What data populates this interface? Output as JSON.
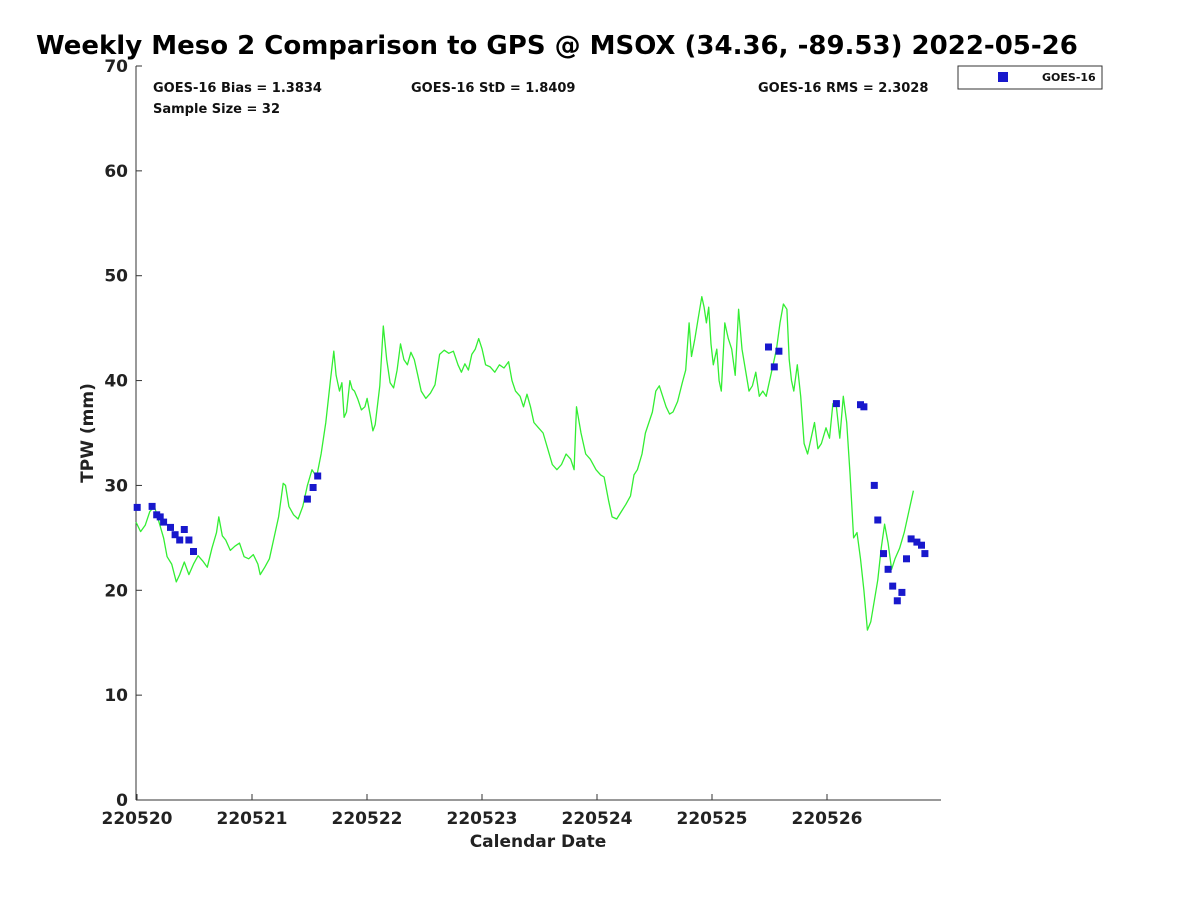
{
  "chart_data": {
    "type": "scatter",
    "title": "Weekly Meso 2 Comparison to GPS @ MSOX (34.36, -89.53) 2022-05-26",
    "xlabel": "Calendar Date",
    "ylabel": "TPW (mm)",
    "xlim": [
      0,
      7
    ],
    "ylim": [
      0,
      70
    ],
    "grid": false,
    "x_ticks": [
      0,
      1,
      2,
      3,
      4,
      5,
      6
    ],
    "x_tick_labels": [
      "220520",
      "220521",
      "220522",
      "220523",
      "220524",
      "220525",
      "220526"
    ],
    "y_ticks": [
      0,
      10,
      20,
      30,
      40,
      50,
      60,
      70
    ],
    "y_tick_labels": [
      "0",
      "10",
      "20",
      "30",
      "40",
      "50",
      "60",
      "70"
    ],
    "stats": {
      "bias": "GOES-16 Bias = 1.3834",
      "std": "GOES-16 StD = 1.8409",
      "rms": "GOES-16 RMS = 2.3028",
      "sample_size": "Sample Size = 32"
    },
    "legend": {
      "position": "top-right",
      "entries": [
        "GOES-16"
      ]
    },
    "series": [
      {
        "name": "GPS",
        "kind": "line",
        "color": "#33ee33",
        "points": [
          [
            0.0,
            26.5
          ],
          [
            0.04,
            25.6
          ],
          [
            0.08,
            26.2
          ],
          [
            0.12,
            27.5
          ],
          [
            0.16,
            28.0
          ],
          [
            0.2,
            26.5
          ],
          [
            0.24,
            25.0
          ],
          [
            0.27,
            23.2
          ],
          [
            0.31,
            22.5
          ],
          [
            0.35,
            20.8
          ],
          [
            0.38,
            21.5
          ],
          [
            0.42,
            22.7
          ],
          [
            0.46,
            21.5
          ],
          [
            0.5,
            22.5
          ],
          [
            0.54,
            23.3
          ],
          [
            0.58,
            22.8
          ],
          [
            0.62,
            22.2
          ],
          [
            0.66,
            24.0
          ],
          [
            0.7,
            25.5
          ],
          [
            0.72,
            27.0
          ],
          [
            0.75,
            25.2
          ],
          [
            0.78,
            24.8
          ],
          [
            0.82,
            23.8
          ],
          [
            0.86,
            24.2
          ],
          [
            0.9,
            24.5
          ],
          [
            0.94,
            23.2
          ],
          [
            0.98,
            23.0
          ],
          [
            1.02,
            23.4
          ],
          [
            1.06,
            22.5
          ],
          [
            1.08,
            21.5
          ],
          [
            1.12,
            22.2
          ],
          [
            1.16,
            23.0
          ],
          [
            1.2,
            25.0
          ],
          [
            1.24,
            27.0
          ],
          [
            1.28,
            30.2
          ],
          [
            1.3,
            30.0
          ],
          [
            1.33,
            28.0
          ],
          [
            1.37,
            27.2
          ],
          [
            1.41,
            26.8
          ],
          [
            1.45,
            28.0
          ],
          [
            1.49,
            30.0
          ],
          [
            1.53,
            31.5
          ],
          [
            1.57,
            30.8
          ],
          [
            1.61,
            33.0
          ],
          [
            1.65,
            36.0
          ],
          [
            1.69,
            40.0
          ],
          [
            1.72,
            42.8
          ],
          [
            1.74,
            40.5
          ],
          [
            1.77,
            39.0
          ],
          [
            1.79,
            39.8
          ],
          [
            1.81,
            36.5
          ],
          [
            1.83,
            37.0
          ],
          [
            1.86,
            40.0
          ],
          [
            1.88,
            39.2
          ],
          [
            1.9,
            39.0
          ],
          [
            1.93,
            38.2
          ],
          [
            1.96,
            37.2
          ],
          [
            1.99,
            37.5
          ],
          [
            2.01,
            38.3
          ],
          [
            2.04,
            36.5
          ],
          [
            2.06,
            35.2
          ],
          [
            2.08,
            35.8
          ],
          [
            2.12,
            39.5
          ],
          [
            2.15,
            45.2
          ],
          [
            2.18,
            42.0
          ],
          [
            2.21,
            39.8
          ],
          [
            2.24,
            39.3
          ],
          [
            2.27,
            41.0
          ],
          [
            2.3,
            43.5
          ],
          [
            2.33,
            42.0
          ],
          [
            2.36,
            41.5
          ],
          [
            2.39,
            42.7
          ],
          [
            2.42,
            42.0
          ],
          [
            2.45,
            40.5
          ],
          [
            2.48,
            39.0
          ],
          [
            2.52,
            38.3
          ],
          [
            2.56,
            38.8
          ],
          [
            2.6,
            39.6
          ],
          [
            2.64,
            42.5
          ],
          [
            2.68,
            42.9
          ],
          [
            2.72,
            42.6
          ],
          [
            2.76,
            42.8
          ],
          [
            2.8,
            41.5
          ],
          [
            2.83,
            40.8
          ],
          [
            2.86,
            41.6
          ],
          [
            2.89,
            41.0
          ],
          [
            2.92,
            42.5
          ],
          [
            2.95,
            43.0
          ],
          [
            2.98,
            44.0
          ],
          [
            3.01,
            43.0
          ],
          [
            3.04,
            41.5
          ],
          [
            3.08,
            41.3
          ],
          [
            3.12,
            40.8
          ],
          [
            3.16,
            41.5
          ],
          [
            3.2,
            41.2
          ],
          [
            3.24,
            41.8
          ],
          [
            3.27,
            40.0
          ],
          [
            3.3,
            39.0
          ],
          [
            3.34,
            38.5
          ],
          [
            3.37,
            37.5
          ],
          [
            3.4,
            38.7
          ],
          [
            3.43,
            37.5
          ],
          [
            3.46,
            36.0
          ],
          [
            3.5,
            35.5
          ],
          [
            3.54,
            35.0
          ],
          [
            3.58,
            33.5
          ],
          [
            3.62,
            32.0
          ],
          [
            3.66,
            31.5
          ],
          [
            3.7,
            32.0
          ],
          [
            3.74,
            33.0
          ],
          [
            3.78,
            32.5
          ],
          [
            3.81,
            31.5
          ],
          [
            3.83,
            37.5
          ],
          [
            3.87,
            35.0
          ],
          [
            3.91,
            33.0
          ],
          [
            3.95,
            32.5
          ],
          [
            4.0,
            31.5
          ],
          [
            4.04,
            31.0
          ],
          [
            4.07,
            30.8
          ],
          [
            4.11,
            28.5
          ],
          [
            4.14,
            27.0
          ],
          [
            4.18,
            26.8
          ],
          [
            4.22,
            27.5
          ],
          [
            4.26,
            28.2
          ],
          [
            4.3,
            29.0
          ],
          [
            4.33,
            31.0
          ],
          [
            4.36,
            31.5
          ],
          [
            4.4,
            33.0
          ],
          [
            4.43,
            35.0
          ],
          [
            4.46,
            36.0
          ],
          [
            4.49,
            37.0
          ],
          [
            4.52,
            39.0
          ],
          [
            4.55,
            39.5
          ],
          [
            4.58,
            38.5
          ],
          [
            4.61,
            37.5
          ],
          [
            4.64,
            36.8
          ],
          [
            4.67,
            37.0
          ],
          [
            4.71,
            38.0
          ],
          [
            4.75,
            39.8
          ],
          [
            4.78,
            41.0
          ],
          [
            4.81,
            45.5
          ],
          [
            4.83,
            42.3
          ],
          [
            4.86,
            44.0
          ],
          [
            4.89,
            46.0
          ],
          [
            4.92,
            48.0
          ],
          [
            4.94,
            47.0
          ],
          [
            4.96,
            45.5
          ],
          [
            4.98,
            47.0
          ],
          [
            5.0,
            43.5
          ],
          [
            5.02,
            41.5
          ],
          [
            5.05,
            43.0
          ],
          [
            5.07,
            40.0
          ],
          [
            5.09,
            39.0
          ],
          [
            5.12,
            45.5
          ],
          [
            5.15,
            44.0
          ],
          [
            5.18,
            43.0
          ],
          [
            5.21,
            40.5
          ],
          [
            5.24,
            46.8
          ],
          [
            5.27,
            43.0
          ],
          [
            5.3,
            41.0
          ],
          [
            5.33,
            39.0
          ],
          [
            5.36,
            39.5
          ],
          [
            5.39,
            40.8
          ],
          [
            5.42,
            38.5
          ],
          [
            5.45,
            39.0
          ],
          [
            5.48,
            38.5
          ],
          [
            5.51,
            40.0
          ],
          [
            5.54,
            41.5
          ],
          [
            5.57,
            43.0
          ],
          [
            5.6,
            45.5
          ],
          [
            5.63,
            47.3
          ],
          [
            5.66,
            46.8
          ],
          [
            5.68,
            42.0
          ],
          [
            5.7,
            40.0
          ],
          [
            5.72,
            39.0
          ],
          [
            5.75,
            41.5
          ],
          [
            5.78,
            38.5
          ],
          [
            5.81,
            34.0
          ],
          [
            5.84,
            33.0
          ],
          [
            5.87,
            34.5
          ],
          [
            5.9,
            36.0
          ],
          [
            5.93,
            33.5
          ],
          [
            5.96,
            34.0
          ],
          [
            6.0,
            35.5
          ],
          [
            6.03,
            34.5
          ],
          [
            6.06,
            37.8
          ],
          [
            6.09,
            37.5
          ],
          [
            6.12,
            34.5
          ],
          [
            6.15,
            38.5
          ],
          [
            6.18,
            36.0
          ],
          [
            6.21,
            31.0
          ],
          [
            6.24,
            25.0
          ],
          [
            6.27,
            25.5
          ],
          [
            6.3,
            23.0
          ],
          [
            6.33,
            20.0
          ],
          [
            6.36,
            16.2
          ],
          [
            6.39,
            17.0
          ],
          [
            6.42,
            19.0
          ],
          [
            6.45,
            21.0
          ],
          [
            6.48,
            24.0
          ],
          [
            6.51,
            26.3
          ],
          [
            6.54,
            24.5
          ],
          [
            6.57,
            22.0
          ],
          [
            6.6,
            23.0
          ],
          [
            6.64,
            24.0
          ],
          [
            6.68,
            25.5
          ],
          [
            6.72,
            27.5
          ],
          [
            6.76,
            29.5
          ]
        ]
      },
      {
        "name": "GOES-16",
        "kind": "scatter",
        "color": "#1818cc",
        "points": [
          [
            0.01,
            27.9
          ],
          [
            0.14,
            28.0
          ],
          [
            0.18,
            27.2
          ],
          [
            0.21,
            27.0
          ],
          [
            0.24,
            26.5
          ],
          [
            0.3,
            26.0
          ],
          [
            0.34,
            25.3
          ],
          [
            0.38,
            24.8
          ],
          [
            0.42,
            25.8
          ],
          [
            0.46,
            24.8
          ],
          [
            0.5,
            23.7
          ],
          [
            1.49,
            28.7
          ],
          [
            1.54,
            29.8
          ],
          [
            1.58,
            30.9
          ],
          [
            5.5,
            43.2
          ],
          [
            5.55,
            41.3
          ],
          [
            5.59,
            42.8
          ],
          [
            6.09,
            37.8
          ],
          [
            6.3,
            37.7
          ],
          [
            6.33,
            37.5
          ],
          [
            6.42,
            30.0
          ],
          [
            6.45,
            26.7
          ],
          [
            6.5,
            23.5
          ],
          [
            6.54,
            22.0
          ],
          [
            6.58,
            20.4
          ],
          [
            6.62,
            19.0
          ],
          [
            6.66,
            19.8
          ],
          [
            6.7,
            23.0
          ],
          [
            6.74,
            24.9
          ],
          [
            6.79,
            24.6
          ],
          [
            6.83,
            24.3
          ],
          [
            6.86,
            23.5
          ]
        ]
      }
    ]
  }
}
